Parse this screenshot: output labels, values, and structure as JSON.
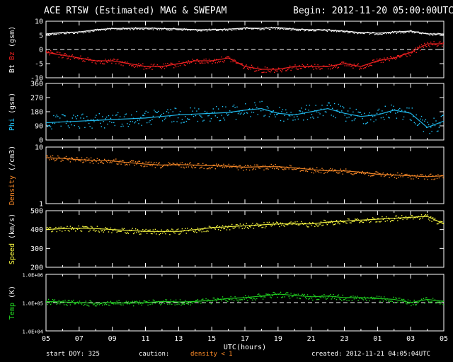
{
  "header": {
    "title": "ACE RTSW (Estimated) MAG & SWEPAM",
    "begin": "Begin: 2012-11-20 05:00:00UTC"
  },
  "footer": {
    "start_doy": "start DOY: 325",
    "caution": "caution:",
    "density_note": "density < 1",
    "created": "created: 2012-11-21 04:05:04UTC"
  },
  "colors": {
    "bt": "#ffffff",
    "bz": "#ff2222",
    "phi": "#22c8ff",
    "density": "#ff8c28",
    "speed": "#ffff44",
    "temp": "#22dd22",
    "density_note": "#ff8c28",
    "frame": "#ffffff",
    "background": "#000000"
  },
  "chart_data": [
    {
      "type": "scatter",
      "title": "ACE RTSW (Estimated) MAG & SWEPAM",
      "ylabel_parts": [
        "Bt",
        "Bz",
        "(gsm)"
      ],
      "ylim": [
        -10,
        10
      ],
      "yticks": [
        -10,
        -5,
        0,
        5,
        10
      ],
      "zero_line": true,
      "x_hours": [
        0,
        1,
        2,
        3,
        4,
        5,
        6,
        7,
        8,
        9,
        10,
        11,
        12,
        13,
        14,
        15,
        16,
        17,
        18,
        19,
        20,
        21,
        22,
        23,
        24
      ],
      "series": [
        {
          "name": "Bt",
          "values": [
            5.5,
            6.0,
            6.2,
            7.0,
            7.4,
            7.5,
            7.6,
            7.4,
            7.3,
            7.0,
            7.0,
            7.2,
            7.6,
            7.5,
            7.8,
            7.2,
            7.0,
            6.9,
            6.5,
            6.0,
            5.8,
            6.2,
            6.5,
            5.5,
            5.5
          ]
        },
        {
          "name": "Bz",
          "values": [
            -1,
            -2,
            -3,
            -4,
            -4,
            -5,
            -6,
            -6,
            -5,
            -4,
            -4,
            -3,
            -6,
            -7,
            -7,
            -6,
            -6,
            -6,
            -5,
            -6,
            -4,
            -3,
            -1,
            2,
            2
          ]
        }
      ]
    },
    {
      "type": "scatter",
      "ylabel_parts": [
        "Phi",
        "(gsm)"
      ],
      "ylim": [
        0,
        360
      ],
      "yticks": [
        0,
        90,
        180,
        270,
        360
      ],
      "series": [
        {
          "name": "Phi",
          "values": [
            110,
            115,
            120,
            125,
            130,
            135,
            140,
            150,
            160,
            165,
            170,
            175,
            190,
            200,
            170,
            160,
            180,
            200,
            170,
            150,
            160,
            190,
            170,
            80,
            120
          ]
        }
      ]
    },
    {
      "type": "scatter",
      "ylabel_parts": [
        "Density",
        "(/cm3)"
      ],
      "yscale": "log",
      "ylim": [
        1,
        10
      ],
      "yticks": [
        1,
        10
      ],
      "series": [
        {
          "name": "Density",
          "values": [
            6.5,
            6.3,
            6.0,
            5.8,
            5.7,
            5.3,
            5.0,
            4.8,
            4.9,
            4.8,
            4.7,
            4.6,
            4.4,
            4.5,
            4.5,
            4.3,
            4.0,
            3.8,
            3.8,
            3.6,
            3.3,
            3.2,
            3.1,
            3.0,
            3.1
          ]
        }
      ]
    },
    {
      "type": "scatter",
      "ylabel_parts": [
        "Speed",
        "(km/s)"
      ],
      "ylim": [
        200,
        500
      ],
      "yticks": [
        200,
        300,
        400,
        500
      ],
      "series": [
        {
          "name": "Speed",
          "values": [
            400,
            405,
            407,
            405,
            400,
            395,
            390,
            390,
            390,
            400,
            410,
            415,
            420,
            425,
            430,
            430,
            430,
            440,
            445,
            450,
            455,
            460,
            465,
            470,
            430
          ]
        }
      ]
    },
    {
      "type": "scatter",
      "ylabel_parts": [
        "Temp",
        "(K)"
      ],
      "yscale": "log",
      "ylim": [
        10000,
        1000000
      ],
      "yticks": [
        10000,
        100000,
        1000000
      ],
      "ytick_labels": [
        "1.0E+04",
        "1.0E+05",
        "1.0E+06"
      ],
      "ref_line": 100000,
      "xlabel": "UTC(hours)",
      "xtick_labels": [
        "05",
        "07",
        "09",
        "11",
        "13",
        "15",
        "17",
        "19",
        "21",
        "23",
        "01",
        "03",
        "05"
      ],
      "series": [
        {
          "name": "Temp",
          "values": [
            110000,
            105000,
            100000,
            95000,
            100000,
            95000,
            100000,
            110000,
            105000,
            110000,
            120000,
            140000,
            150000,
            170000,
            200000,
            180000,
            160000,
            170000,
            150000,
            150000,
            140000,
            130000,
            100000,
            130000,
            110000
          ]
        }
      ]
    }
  ]
}
